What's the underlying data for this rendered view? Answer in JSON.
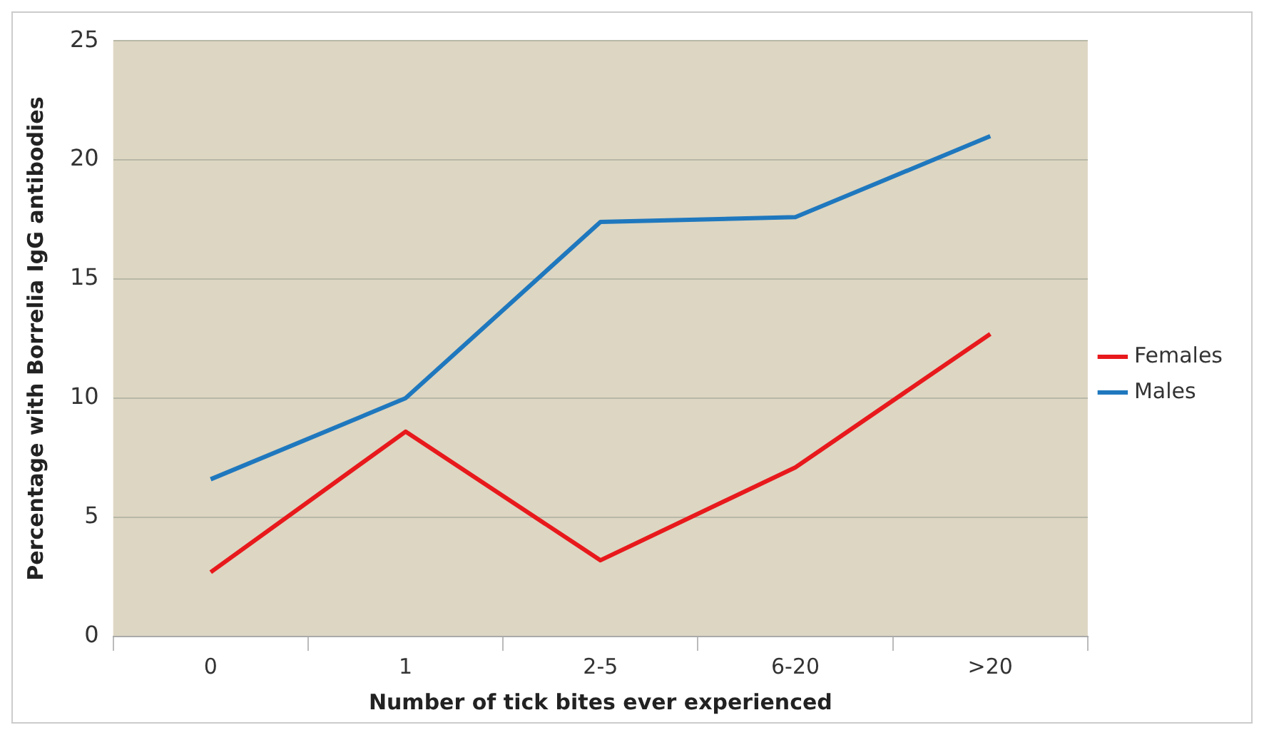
{
  "chart_data": {
    "type": "line",
    "xlabel": "Number of tick bites ever experienced",
    "ylabel": "Percentage with Borrelia IgG antibodies",
    "categories": [
      "0",
      "1",
      "2-5",
      "6-20",
      ">20"
    ],
    "series": [
      {
        "name": "Females",
        "color": "#e8191c",
        "values": [
          2.7,
          8.6,
          3.2,
          7.1,
          12.7
        ]
      },
      {
        "name": "Males",
        "color": "#1f78be",
        "values": [
          6.6,
          10.0,
          17.4,
          17.6,
          21.0
        ]
      }
    ],
    "ylim": [
      0,
      25
    ],
    "yticks": [
      0,
      5,
      10,
      15,
      20,
      25
    ],
    "grid": "y",
    "legend": "right",
    "marker": "none",
    "line_style": "solid"
  }
}
